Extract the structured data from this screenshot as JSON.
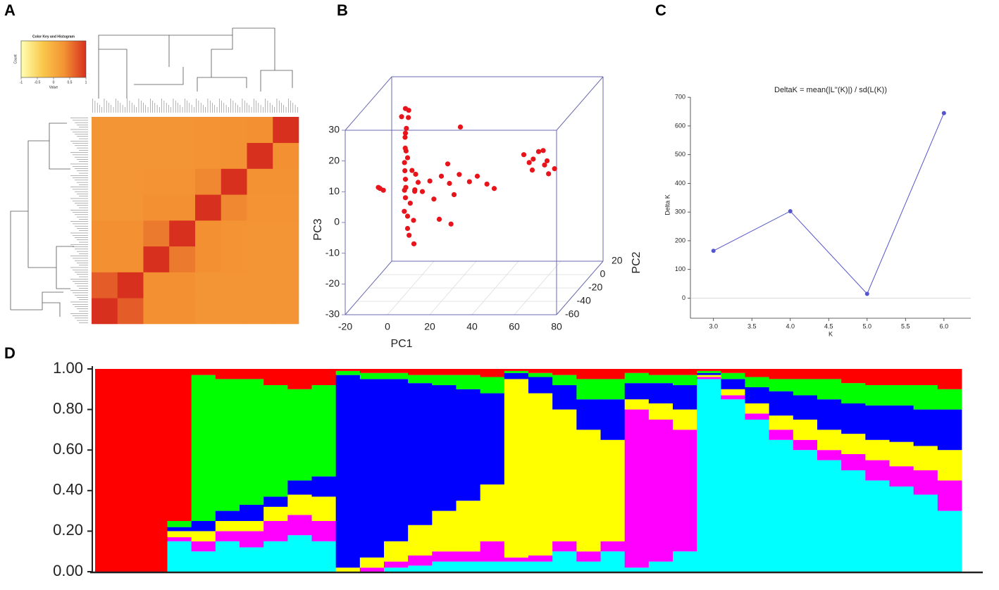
{
  "chart_data": [
    {
      "type": "heatmap",
      "panel": "A",
      "key_title": "Color Key and Histogram",
      "key_xlabel": "Value",
      "key_ylabel": "Count",
      "key_lim": [
        -1,
        1
      ],
      "key_ticks": [
        -1,
        -0.5,
        0,
        0.5,
        1
      ],
      "colors": [
        "#ffffb2",
        "#f9c84a",
        "#f39233",
        "#d7301f"
      ],
      "matrix": [
        [
          1,
          0.7,
          0.35,
          0.35,
          0.3,
          0.3,
          0.3,
          0.3
        ],
        [
          0.7,
          1,
          0.35,
          0.35,
          0.3,
          0.3,
          0.3,
          0.3
        ],
        [
          0.35,
          0.35,
          1,
          0.5,
          0.35,
          0.32,
          0.3,
          0.3
        ],
        [
          0.35,
          0.35,
          0.5,
          1,
          0.35,
          0.32,
          0.3,
          0.3
        ],
        [
          0.3,
          0.3,
          0.35,
          0.35,
          1,
          0.4,
          0.32,
          0.32
        ],
        [
          0.3,
          0.3,
          0.32,
          0.32,
          0.4,
          1,
          0.33,
          0.33
        ],
        [
          0.3,
          0.3,
          0.3,
          0.3,
          0.32,
          0.33,
          1,
          0.35
        ],
        [
          0.3,
          0.3,
          0.3,
          0.3,
          0.32,
          0.33,
          0.35,
          1
        ]
      ]
    },
    {
      "type": "scatter3d",
      "panel": "B",
      "xlabel": "PC1",
      "ylabel": "PC2",
      "zlabel": "PC3",
      "color": "#e8141b",
      "box_color": "#6a6ab0",
      "xlim": [
        -20,
        80
      ],
      "ylim": [
        -60,
        20
      ],
      "zlim": [
        -30,
        30
      ],
      "xticks": [
        -20,
        0,
        20,
        40,
        60,
        80
      ],
      "yticks": [
        -60,
        -40,
        -20,
        0,
        20
      ],
      "zticks": [
        -30,
        -20,
        -10,
        0,
        10,
        20,
        30
      ],
      "x": [
        -8,
        -7,
        -9,
        -8,
        -7,
        -8,
        -9,
        -7,
        -8,
        -7,
        -9,
        -8,
        -6,
        -8,
        -7,
        -9,
        -8,
        -6,
        -8,
        -7,
        -5,
        -7,
        -6,
        -4,
        -5,
        -3,
        -2,
        -4,
        -20,
        -19,
        -20,
        0,
        3,
        6,
        9,
        12,
        15,
        18,
        22,
        26,
        30,
        34,
        8,
        13,
        18,
        12,
        48,
        50,
        53,
        55,
        57,
        59,
        60,
        62,
        58,
        52
      ],
      "y": [
        0,
        2,
        -3,
        5,
        -2,
        0,
        3,
        -4,
        1,
        0,
        2,
        -1,
        4,
        0,
        -3,
        2,
        0,
        1,
        -2,
        0,
        3,
        0,
        -1,
        0,
        5,
        -2,
        0,
        3,
        0,
        2,
        -3,
        0,
        2,
        -2,
        0,
        3,
        0,
        -2,
        1,
        0,
        2,
        0,
        0,
        2,
        0,
        0,
        0,
        2,
        -2,
        0,
        3,
        0,
        -1,
        2,
        -3,
        0
      ],
      "z": [
        24,
        23,
        22,
        20,
        18,
        16,
        14,
        12,
        10,
        8,
        6,
        4,
        3,
        1,
        -1,
        -3,
        -5,
        -7,
        -9,
        -11,
        -13,
        -15,
        -17,
        -20,
        -4,
        -2,
        0,
        2,
        -2,
        -3,
        -1,
        -3,
        0,
        -5,
        2,
        -1,
        -4,
        3,
        0,
        2,
        -1,
        -2,
        -12,
        -14,
        18,
        6,
        9,
        6,
        8,
        10,
        5,
        7,
        3,
        4,
        11,
        4
      ]
    },
    {
      "type": "line",
      "panel": "C",
      "title": "DeltaK = mean(|L''(K)|) / sd(L(K))",
      "xlabel": "K",
      "ylabel": "Delta K",
      "x": [
        3,
        4,
        5,
        6
      ],
      "series": [
        {
          "color": "#5555cc",
          "values": [
            165,
            303,
            15,
            645
          ]
        }
      ],
      "xlim": [
        2.7,
        6.35
      ],
      "ylim": [
        -70,
        720
      ],
      "xticks": [
        {
          "value": 3,
          "label": "3.0"
        },
        {
          "value": 3.5,
          "label": "3.5"
        },
        {
          "value": 4,
          "label": "4.0"
        },
        {
          "value": 4.5,
          "label": "4.5"
        },
        {
          "value": 5,
          "label": "5.0"
        },
        {
          "value": 5.5,
          "label": "5.5"
        },
        {
          "value": 6,
          "label": "6.0"
        }
      ],
      "yticks": [
        0,
        100,
        200,
        300,
        400,
        500,
        600,
        700
      ]
    },
    {
      "type": "stacked_bar",
      "panel": "D",
      "ylim": [
        0,
        1
      ],
      "yticks": [
        {
          "value": 0,
          "label": "0.00"
        },
        {
          "value": 0.2,
          "label": "0.20"
        },
        {
          "value": 0.4,
          "label": "0.40"
        },
        {
          "value": 0.6,
          "label": "0.60"
        },
        {
          "value": 0.8,
          "label": "0.80"
        },
        {
          "value": 1,
          "label": "1.00"
        }
      ],
      "series": [
        {
          "color": "#00ffff",
          "values": [
            0,
            0,
            0,
            0.15,
            0.1,
            0.15,
            0.12,
            0.15,
            0.18,
            0.15,
            0,
            0,
            0.02,
            0.03,
            0.05,
            0.05,
            0.05,
            0.05,
            0.05,
            0.1,
            0.05,
            0.1,
            0.02,
            0.05,
            0.1,
            0.95,
            0.85,
            0.75,
            0.65,
            0.6,
            0.55,
            0.5,
            0.45,
            0.42,
            0.38,
            0.3
          ]
        },
        {
          "color": "#ff00ff",
          "values": [
            0,
            0,
            0,
            0.02,
            0.05,
            0.05,
            0.08,
            0.1,
            0.1,
            0.1,
            0,
            0.02,
            0.03,
            0.05,
            0.05,
            0.05,
            0.1,
            0.02,
            0.03,
            0.05,
            0.05,
            0.05,
            0.78,
            0.7,
            0.6,
            0.01,
            0.02,
            0.03,
            0.05,
            0.05,
            0.05,
            0.08,
            0.1,
            0.1,
            0.12,
            0.15
          ]
        },
        {
          "color": "#ffff00",
          "values": [
            0,
            0,
            0,
            0.03,
            0.05,
            0.05,
            0.05,
            0.07,
            0.1,
            0.12,
            0.02,
            0.05,
            0.1,
            0.15,
            0.2,
            0.25,
            0.28,
            0.88,
            0.8,
            0.65,
            0.6,
            0.5,
            0.05,
            0.08,
            0.1,
            0.01,
            0.03,
            0.05,
            0.07,
            0.1,
            0.1,
            0.1,
            0.1,
            0.12,
            0.12,
            0.15
          ]
        },
        {
          "color": "#0000ff",
          "values": [
            0,
            0,
            0,
            0.02,
            0.05,
            0.05,
            0.08,
            0.05,
            0.07,
            0.1,
            0.95,
            0.88,
            0.8,
            0.7,
            0.62,
            0.55,
            0.45,
            0.03,
            0.08,
            0.12,
            0.15,
            0.2,
            0.08,
            0.1,
            0.12,
            0.01,
            0.05,
            0.08,
            0.12,
            0.12,
            0.15,
            0.15,
            0.17,
            0.18,
            0.18,
            0.2
          ]
        },
        {
          "color": "#00ff00",
          "values": [
            0,
            0,
            0,
            0.03,
            0.72,
            0.65,
            0.62,
            0.55,
            0.45,
            0.45,
            0.02,
            0.03,
            0.03,
            0.04,
            0.05,
            0.07,
            0.08,
            0.01,
            0.02,
            0.05,
            0.1,
            0.1,
            0.05,
            0.04,
            0.05,
            0.01,
            0.03,
            0.05,
            0.06,
            0.08,
            0.1,
            0.1,
            0.1,
            0.1,
            0.12,
            0.1
          ]
        },
        {
          "color": "#ff0000",
          "values": [
            1,
            1,
            1,
            0.75,
            0.03,
            0.05,
            0.05,
            0.08,
            0.1,
            0.08,
            0.01,
            0.02,
            0.02,
            0.03,
            0.03,
            0.03,
            0.04,
            0.01,
            0.02,
            0.03,
            0.05,
            0.05,
            0.02,
            0.03,
            0.03,
            0.01,
            0.02,
            0.04,
            0.05,
            0.05,
            0.05,
            0.07,
            0.08,
            0.08,
            0.08,
            0.1
          ]
        }
      ]
    }
  ]
}
